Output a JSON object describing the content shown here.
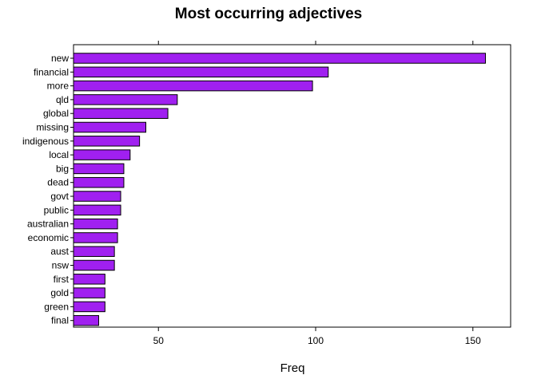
{
  "chart_data": {
    "type": "bar",
    "orientation": "horizontal",
    "title": "Most occurring adjectives",
    "xlabel": "Freq",
    "ylabel": "",
    "categories": [
      "new",
      "financial",
      "more",
      "qld",
      "global",
      "missing",
      "indigenous",
      "local",
      "big",
      "dead",
      "govt",
      "public",
      "australian",
      "economic",
      "aust",
      "nsw",
      "first",
      "gold",
      "green",
      "final"
    ],
    "values": [
      154,
      104,
      99,
      56,
      53,
      46,
      44,
      41,
      39,
      39,
      38,
      38,
      37,
      37,
      36,
      36,
      33,
      33,
      33,
      31
    ],
    "xticks": [
      50,
      100,
      150
    ],
    "xlim": [
      23,
      162
    ],
    "bar_color": "#a020f0",
    "grid": false
  }
}
